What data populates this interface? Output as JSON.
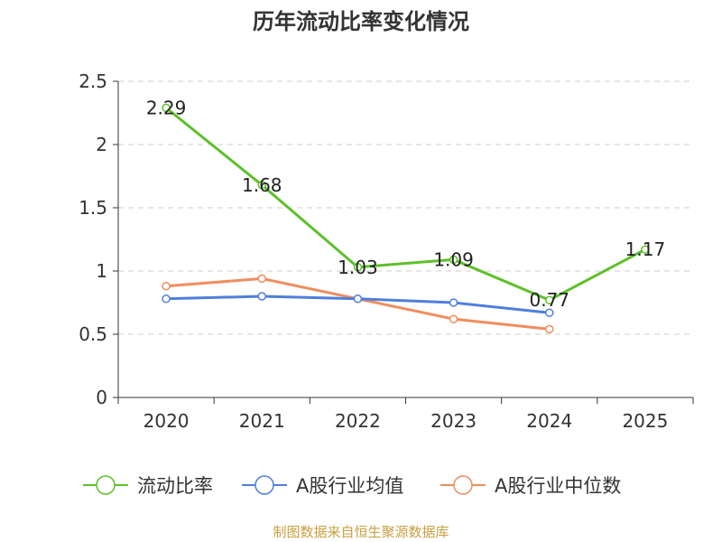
{
  "chart_data": {
    "type": "line",
    "title": "历年流动比率变化情况",
    "categories": [
      "2020",
      "2021",
      "2022",
      "2023",
      "2024",
      "2025"
    ],
    "ylim": [
      0,
      2.5
    ],
    "yticks": [
      "0",
      "0.5",
      "1",
      "1.5",
      "2",
      "2.5"
    ],
    "grid": true,
    "legend_position": "bottom",
    "series": [
      {
        "name": "流动比率",
        "color": "#5ec02a",
        "values": [
          2.29,
          1.68,
          1.03,
          1.09,
          0.77,
          1.17
        ],
        "labels": [
          "2.29",
          "1.68",
          "1.03",
          "1.09",
          "0.77",
          "1.17"
        ],
        "show_labels": true
      },
      {
        "name": "A股行业均值",
        "color": "#4f7fdc",
        "values": [
          0.78,
          0.8,
          0.78,
          0.75,
          0.67,
          null
        ],
        "show_labels": false
      },
      {
        "name": "A股行业中位数",
        "color": "#f08d5d",
        "values": [
          0.88,
          0.94,
          0.78,
          0.62,
          0.54,
          null
        ],
        "show_labels": false
      }
    ]
  },
  "source": "制图数据来自恒生聚源数据库"
}
